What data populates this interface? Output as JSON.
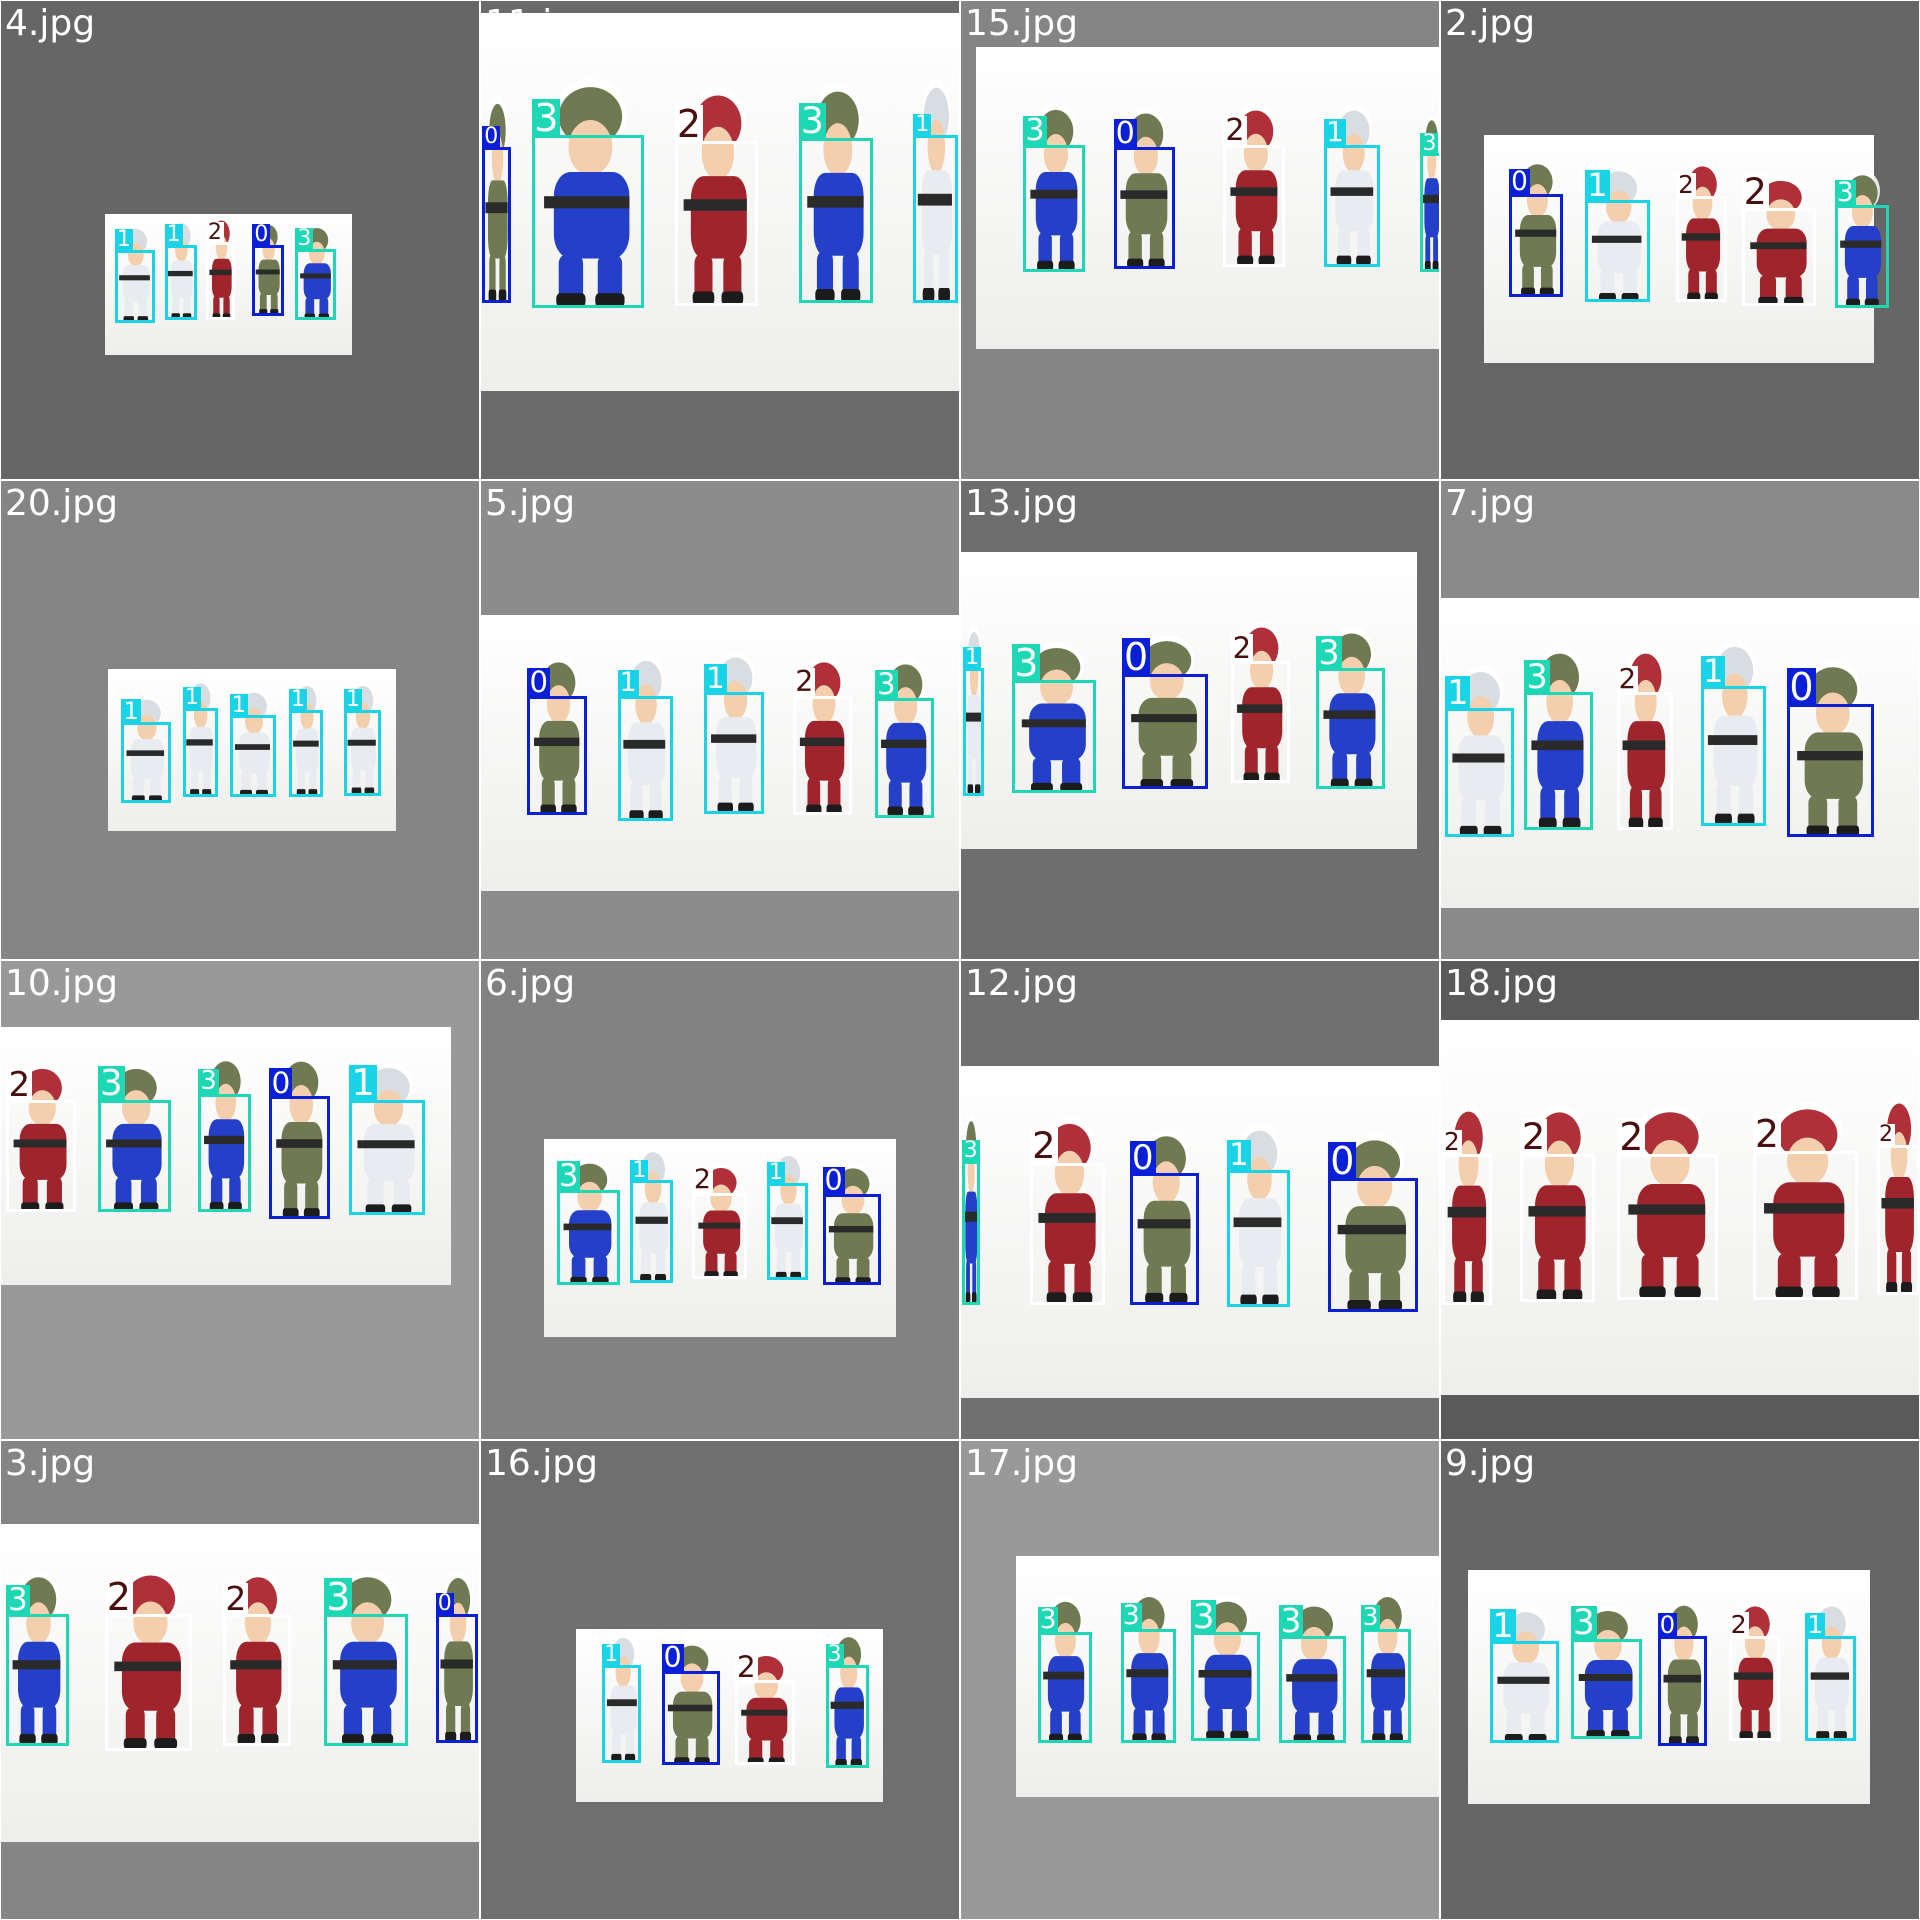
{
  "class_colors": {
    "0": "#0a1fd6",
    "1": "#19d4e6",
    "2": "#ffffff",
    "3": "#1ed7b5"
  },
  "label_text_colors": {
    "0": "#ffffff",
    "1": "#ffffff",
    "2": "#4a0f0f",
    "3": "#ffffff"
  },
  "class_figure_colors": {
    "0": "#6f7a52",
    "1": "#e8ecf0",
    "2": "#a0242b",
    "3": "#2540c8"
  },
  "tiles": [
    {
      "name": "4.jpg",
      "bg": "#666666",
      "paper": [
        85,
        175,
        288,
        290
      ],
      "dets": [
        [
          0,
          92,
          204,
          128,
          264,
          "1"
        ],
        [
          0,
          133,
          200,
          162,
          262,
          "1"
        ],
        [
          0,
          167,
          198,
          193,
          262,
          "2"
        ],
        [
          0,
          205,
          200,
          233,
          258,
          "0"
        ],
        [
          0,
          240,
          203,
          276,
          262,
          "3"
        ]
      ]
    },
    {
      "name": "11.jpg",
      "bg": "#6b6b6b",
      "paper": [
        0,
        10,
        392,
        320
      ],
      "dets": [
        [
          0,
          392,
          120,
          418,
          248,
          "0"
        ],
        [
          0,
          430,
          110,
          530,
          252,
          "3"
        ],
        [
          0,
          548,
          115,
          622,
          250,
          "2"
        ],
        [
          0,
          650,
          112,
          716,
          248,
          "3"
        ],
        [
          0,
          745,
          110,
          785,
          248,
          "1"
        ]
      ]
    },
    {
      "name": "15.jpg",
      "bg": "#858585",
      "paper": [
        12,
        38,
        392,
        285
      ],
      "dets": [
        [
          0,
          833,
          118,
          888,
          222,
          "3"
        ],
        [
          0,
          907,
          120,
          962,
          220,
          "0"
        ],
        [
          0,
          997,
          118,
          1052,
          218,
          "2"
        ],
        [
          0,
          1080,
          118,
          1130,
          218,
          "1"
        ],
        [
          0,
          1160,
          125,
          1180,
          222,
          "3"
        ]
      ]
    },
    {
      "name": "2.jpg",
      "bg": "#666666",
      "paper": [
        35,
        110,
        355,
        297
      ],
      "dets": [
        [
          0,
          1230,
          158,
          1278,
          243,
          "0"
        ],
        [
          0,
          1292,
          163,
          1350,
          247,
          "1"
        ],
        [
          0,
          1367,
          160,
          1412,
          247,
          "2"
        ],
        [
          0,
          1420,
          170,
          1486,
          250,
          "2"
        ],
        [
          0,
          1497,
          167,
          1545,
          252,
          "3"
        ]
      ]
    },
    {
      "name": "20.jpg",
      "bg": "#858585",
      "paper": [
        88,
        546,
        324,
        679
      ],
      "dets": [
        [
          0,
          97,
          590,
          141,
          656,
          "1"
        ],
        [
          0,
          148,
          578,
          179,
          651,
          "1"
        ],
        [
          0,
          186,
          584,
          227,
          651,
          "1"
        ],
        [
          0,
          235,
          580,
          265,
          651,
          "1"
        ],
        [
          0,
          280,
          580,
          313,
          650,
          "1"
        ]
      ]
    },
    {
      "name": "5.jpg",
      "bg": "#8c8c8c",
      "paper": [
        0,
        502,
        392,
        728
      ],
      "dets": [
        [
          0,
          428,
          568,
          481,
          666,
          "0"
        ],
        [
          0,
          502,
          568,
          551,
          671,
          "1"
        ],
        [
          0,
          573,
          565,
          626,
          665,
          "1"
        ],
        [
          0,
          646,
          568,
          698,
          666,
          "2"
        ],
        [
          0,
          713,
          570,
          766,
          668,
          "3"
        ]
      ]
    },
    {
      "name": "13.jpg",
      "bg": "#6e6e6e",
      "paper": [
        0,
        450,
        374,
        694
      ],
      "dets": [
        [
          0,
          785,
          545,
          804,
          650,
          "1"
        ],
        [
          0,
          823,
          555,
          898,
          648,
          "3"
        ],
        [
          0,
          913,
          550,
          990,
          645,
          "0"
        ],
        [
          0,
          1003,
          540,
          1056,
          640,
          "2"
        ],
        [
          0,
          1073,
          545,
          1134,
          645,
          "3"
        ]
      ]
    },
    {
      "name": "7.jpg",
      "bg": "#8a8a8a",
      "paper": [
        0,
        488,
        392,
        742
      ],
      "dets": [
        [
          0,
          1177,
          578,
          1238,
          684,
          "1"
        ],
        [
          0,
          1242,
          565,
          1303,
          678,
          "3"
        ],
        [
          0,
          1318,
          565,
          1368,
          678,
          "2"
        ],
        [
          0,
          1387,
          560,
          1445,
          675,
          "1"
        ],
        [
          0,
          1457,
          575,
          1534,
          684,
          "0"
        ]
      ]
    },
    {
      "name": "10.jpg",
      "bg": "#999999",
      "paper": [
        0,
        838,
        369,
        1050
      ],
      "dets": [
        [
          0,
          2,
          898,
          64,
          990,
          "2"
        ],
        [
          0,
          77,
          898,
          142,
          990,
          "3"
        ],
        [
          0,
          160,
          893,
          207,
          990,
          "3"
        ],
        [
          0,
          218,
          895,
          272,
          996,
          "0"
        ],
        [
          0,
          283,
          898,
          350,
          992,
          "1"
        ]
      ]
    },
    {
      "name": "6.jpg",
      "bg": "#828282",
      "paper": [
        52,
        930,
        340,
        1092
      ],
      "dets": [
        [
          0,
          452,
          972,
          508,
          1050,
          "3"
        ],
        [
          0,
          513,
          964,
          551,
          1048,
          "1"
        ],
        [
          0,
          563,
          974,
          612,
          1045,
          "2"
        ],
        [
          0,
          625,
          966,
          662,
          1046,
          "1"
        ],
        [
          0,
          670,
          975,
          722,
          1050,
          "0"
        ]
      ]
    },
    {
      "name": "12.jpg",
      "bg": "#707070",
      "paper": [
        0,
        870,
        392,
        1142
      ],
      "dets": [
        [
          0,
          784,
          948,
          800,
          1066,
          "3"
        ],
        [
          0,
          838,
          950,
          905,
          1066,
          "2"
        ],
        [
          0,
          920,
          958,
          982,
          1066,
          "0"
        ],
        [
          0,
          1000,
          955,
          1056,
          1068,
          "1"
        ],
        [
          0,
          1082,
          962,
          1162,
          1072,
          "0"
        ]
      ]
    },
    {
      "name": "18.jpg",
      "bg": "#5a5a5a",
      "paper": [
        0,
        832,
        392,
        1140
      ],
      "dets": [
        [
          0,
          1175,
          942,
          1220,
          1066,
          "2"
        ],
        [
          0,
          1238,
          942,
          1305,
          1064,
          "2"
        ],
        [
          0,
          1317,
          942,
          1407,
          1062,
          "2"
        ],
        [
          0,
          1428,
          940,
          1522,
          1062,
          "2"
        ],
        [
          0,
          1532,
          935,
          1570,
          1058,
          "2"
        ]
      ]
    },
    {
      "name": "3.jpg",
      "bg": "#858585",
      "paper": [
        0,
        1244,
        392,
        1505
      ],
      "dets": [
        [
          0,
          2,
          1318,
          58,
          1426,
          "3"
        ],
        [
          0,
          82,
          1318,
          160,
          1430,
          "2"
        ],
        [
          0,
          180,
          1318,
          240,
          1426,
          "2"
        ],
        [
          0,
          262,
          1318,
          337,
          1426,
          "3"
        ],
        [
          0,
          355,
          1318,
          393,
          1424,
          "0"
        ]
      ]
    },
    {
      "name": "16.jpg",
      "bg": "#6f6f6f",
      "paper": [
        78,
        1330,
        330,
        1472
      ],
      "dets": [
        [
          0,
          490,
          1360,
          525,
          1440,
          "1"
        ],
        [
          0,
          538,
          1365,
          590,
          1442,
          "0"
        ],
        [
          0,
          598,
          1372,
          652,
          1442,
          "2"
        ],
        [
          0,
          673,
          1360,
          712,
          1444,
          "3"
        ]
      ]
    },
    {
      "name": "17.jpg",
      "bg": "#999999",
      "paper": [
        45,
        1270,
        392,
        1468
      ],
      "dets": [
        [
          0,
          845,
          1333,
          893,
          1424,
          "3"
        ],
        [
          0,
          913,
          1330,
          962,
          1424,
          "3"
        ],
        [
          0,
          970,
          1333,
          1032,
          1422,
          "3"
        ],
        [
          0,
          1042,
          1336,
          1102,
          1424,
          "3"
        ],
        [
          0,
          1110,
          1330,
          1155,
          1424,
          "3"
        ]
      ]
    },
    {
      "name": "9.jpg",
      "bg": "#666666",
      "paper": [
        22,
        1282,
        352,
        1474
      ],
      "dets": [
        [
          0,
          1214,
          1340,
          1275,
          1424,
          "1"
        ],
        [
          0,
          1280,
          1338,
          1343,
          1420,
          "3"
        ],
        [
          0,
          1352,
          1336,
          1396,
          1426,
          "0"
        ],
        [
          0,
          1410,
          1336,
          1456,
          1422,
          "2"
        ],
        [
          0,
          1473,
          1336,
          1518,
          1422,
          "1"
        ]
      ]
    }
  ]
}
